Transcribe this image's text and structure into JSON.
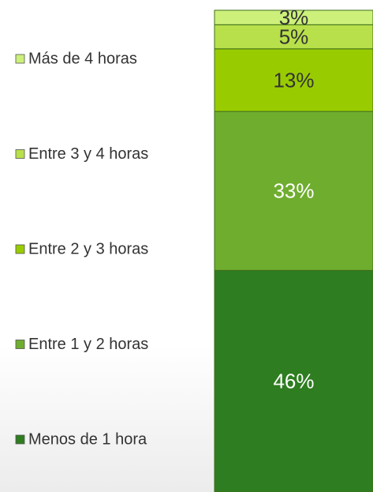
{
  "chart_data": {
    "type": "stacked-bar",
    "ylim": [
      0,
      100
    ],
    "series": [
      {
        "name": "Menos de 1 hora",
        "color": "#2e7d20",
        "label_color": "#ffffff",
        "values": [
          46
        ],
        "value_labels": [
          "46%"
        ]
      },
      {
        "name": "Entre 1 y 2 horas",
        "color": "#6fad2e",
        "label_color": "#ffffff",
        "values": [
          33
        ],
        "value_labels": [
          "33%"
        ]
      },
      {
        "name": "Entre 2 y 3 horas",
        "color": "#99cc00",
        "label_color": "#333333",
        "values": [
          13
        ],
        "value_labels": [
          "13%"
        ]
      },
      {
        "name": "Entre 3 y 4 horas",
        "color": "#b8e04a",
        "label_color": "#333333",
        "values": [
          5
        ],
        "value_labels": [
          "5%"
        ]
      },
      {
        "name": "Más de 4 horas",
        "color": "#ccf07a",
        "label_color": "#333333",
        "values": [
          3
        ],
        "value_labels": [
          "3%"
        ]
      }
    ]
  }
}
